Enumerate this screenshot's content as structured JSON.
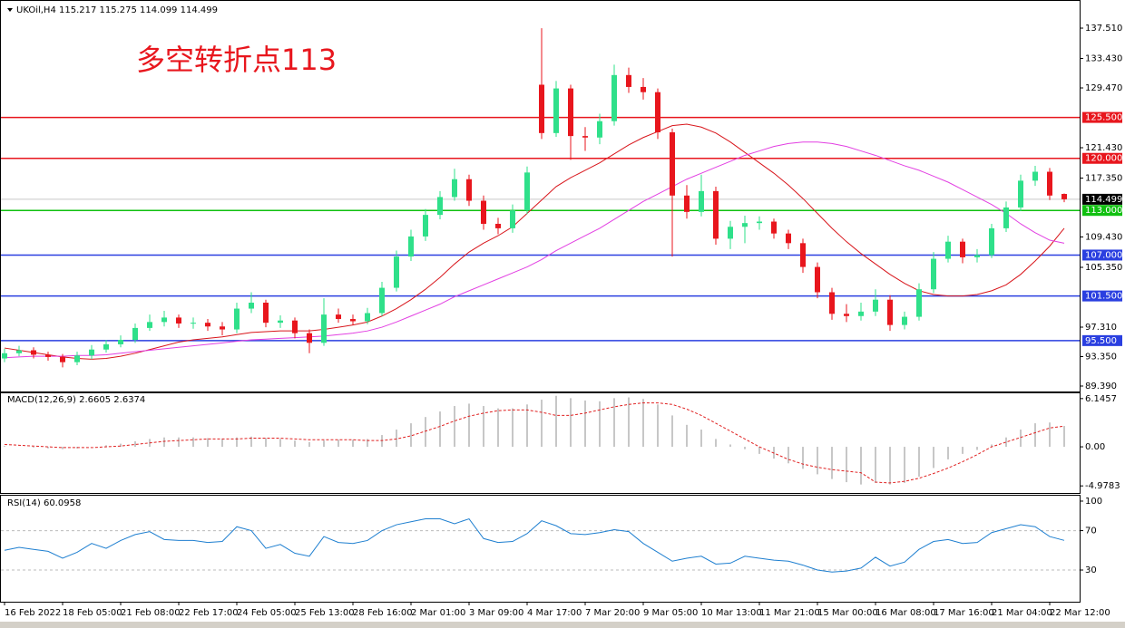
{
  "chart_data": [
    {
      "type": "candlestick",
      "title": "UKOil,H4  115.217 115.275 114.099 114.499",
      "annotation": "多空转折点113",
      "categories": [
        "16 Feb 2022",
        null,
        null,
        null,
        "18 Feb 05:00",
        null,
        null,
        null,
        "21 Feb 08:00",
        null,
        null,
        null,
        "22 Feb 17:00",
        null,
        null,
        null,
        "24 Feb 05:00",
        null,
        null,
        null,
        "25 Feb 13:00",
        null,
        null,
        null,
        "28 Feb 16:00",
        null,
        null,
        null,
        "2 Mar 01:00",
        null,
        null,
        null,
        "3 Mar 09:00",
        null,
        null,
        null,
        "4 Mar 17:00",
        null,
        null,
        null,
        "7 Mar 20:00",
        null,
        null,
        null,
        "9 Mar 05:00",
        null,
        null,
        null,
        "10 Mar 13:00",
        null,
        null,
        null,
        "11 Mar 21:00",
        null,
        null,
        null,
        "15 Mar 00:00",
        null,
        null,
        null,
        "16 Mar 08:00",
        null,
        null,
        null,
        "17 Mar 16:00",
        null,
        null,
        null,
        "21 Mar 04:00",
        null,
        null,
        null,
        "22 Mar 12:00",
        null
      ],
      "open": [
        93.1,
        93.8,
        94.2,
        93.6,
        93.3,
        92.6,
        93.5,
        94.3,
        95.0,
        95.6,
        97.2,
        98.0,
        98.6,
        97.8,
        97.9,
        97.4,
        97.0,
        99.8,
        100.6,
        97.9,
        98.2,
        96.5,
        95.2,
        99.0,
        98.4,
        98.1,
        99.2,
        102.6,
        106.8,
        109.5,
        112.4,
        114.8,
        117.2,
        114.3,
        111.2,
        110.6,
        113.0,
        129.9,
        123.4,
        129.4,
        123.0,
        122.8,
        125.0,
        131.2,
        129.6,
        128.9,
        123.5,
        115.0,
        112.8,
        115.6,
        109.2,
        110.8,
        111.3,
        111.5,
        109.9,
        108.6,
        105.4,
        102.0,
        99.1,
        98.8,
        99.4,
        101.0,
        97.6,
        98.7,
        102.4,
        106.5,
        108.8,
        106.7,
        107.0,
        110.6,
        113.4,
        117.0,
        118.2,
        115.217
      ],
      "high": [
        94.4,
        94.8,
        94.6,
        94.0,
        93.7,
        94.0,
        94.9,
        95.6,
        96.2,
        97.8,
        99.0,
        99.5,
        99.0,
        98.6,
        98.4,
        98.0,
        100.6,
        102.0,
        101.0,
        98.9,
        98.6,
        97.0,
        101.2,
        99.8,
        99.0,
        99.9,
        103.4,
        107.6,
        110.4,
        113.2,
        115.6,
        118.6,
        117.8,
        115.0,
        112.0,
        113.8,
        118.9,
        137.5,
        130.4,
        129.9,
        124.2,
        126.0,
        132.6,
        132.2,
        130.8,
        129.4,
        124.0,
        116.4,
        117.8,
        116.2,
        111.6,
        112.3,
        112.2,
        111.9,
        110.4,
        109.2,
        106.0,
        102.6,
        100.4,
        100.6,
        102.4,
        101.6,
        99.4,
        103.2,
        107.4,
        109.6,
        109.2,
        107.8,
        111.2,
        114.2,
        117.8,
        119.0,
        118.7,
        115.275
      ],
      "low": [
        92.6,
        93.4,
        93.1,
        92.8,
        91.9,
        92.2,
        93.0,
        93.9,
        94.6,
        95.2,
        96.8,
        97.4,
        97.2,
        97.1,
        96.8,
        96.2,
        96.5,
        99.2,
        97.3,
        97.2,
        95.8,
        93.8,
        94.8,
        97.9,
        97.6,
        97.7,
        98.8,
        102.1,
        106.2,
        108.9,
        111.8,
        114.3,
        113.6,
        110.4,
        109.8,
        110.0,
        112.5,
        122.6,
        122.9,
        119.8,
        121.0,
        121.9,
        124.4,
        128.8,
        127.9,
        122.6,
        106.8,
        111.9,
        112.2,
        108.4,
        107.8,
        108.6,
        110.4,
        109.2,
        107.8,
        104.6,
        101.2,
        98.3,
        98.0,
        98.2,
        98.8,
        96.8,
        97.0,
        98.2,
        101.9,
        106.0,
        105.9,
        106.0,
        106.6,
        110.1,
        112.9,
        116.3,
        114.4,
        114.099
      ],
      "close": [
        93.8,
        94.2,
        93.6,
        93.3,
        92.6,
        93.5,
        94.3,
        95.0,
        95.6,
        97.2,
        98.0,
        98.6,
        97.8,
        97.9,
        97.4,
        97.0,
        99.8,
        100.6,
        97.9,
        98.2,
        96.5,
        95.2,
        99.0,
        98.4,
        98.1,
        99.2,
        102.6,
        106.8,
        109.5,
        112.4,
        114.8,
        117.2,
        114.3,
        111.2,
        110.6,
        113.0,
        118.1,
        123.4,
        129.4,
        123.0,
        122.8,
        125.0,
        131.2,
        129.6,
        128.9,
        123.5,
        115.0,
        112.8,
        115.6,
        109.2,
        110.8,
        111.3,
        111.5,
        109.9,
        108.6,
        105.4,
        102.0,
        99.1,
        98.8,
        99.4,
        101.0,
        97.6,
        98.7,
        102.4,
        106.5,
        108.8,
        106.7,
        107.0,
        110.6,
        113.4,
        117.0,
        118.2,
        115.0,
        114.499
      ],
      "up_color": "#2fe08a",
      "down_color": "#e8161d",
      "lines": [
        {
          "color": "#d8151b",
          "values": [
            94.5,
            94.2,
            93.9,
            93.6,
            93.3,
            93.1,
            93.0,
            93.1,
            93.4,
            93.8,
            94.3,
            94.8,
            95.3,
            95.6,
            95.8,
            96.0,
            96.3,
            96.6,
            96.7,
            96.8,
            96.8,
            96.8,
            97.0,
            97.3,
            97.6,
            98.0,
            98.8,
            99.8,
            101.0,
            102.4,
            104.0,
            105.8,
            107.4,
            108.6,
            109.6,
            110.8,
            112.6,
            114.4,
            116.2,
            117.4,
            118.4,
            119.4,
            120.6,
            121.8,
            122.8,
            123.6,
            124.4,
            124.6,
            124.2,
            123.4,
            122.2,
            120.8,
            119.4,
            118.0,
            116.4,
            114.6,
            112.6,
            110.6,
            108.8,
            107.2,
            105.8,
            104.4,
            103.2,
            102.2,
            101.7,
            101.5,
            101.5,
            101.7,
            102.2,
            103.0,
            104.4,
            106.2,
            108.2,
            110.6
          ]
        },
        {
          "color": "#e23fe2",
          "values": [
            93.2,
            93.3,
            93.4,
            93.4,
            93.4,
            93.5,
            93.5,
            93.6,
            93.8,
            94.0,
            94.2,
            94.4,
            94.6,
            94.8,
            95.0,
            95.2,
            95.4,
            95.6,
            95.7,
            95.8,
            95.9,
            96.0,
            96.1,
            96.3,
            96.5,
            96.8,
            97.3,
            98.0,
            98.8,
            99.6,
            100.4,
            101.4,
            102.2,
            103.0,
            103.8,
            104.6,
            105.4,
            106.4,
            107.6,
            108.6,
            109.6,
            110.6,
            111.8,
            113.0,
            114.2,
            115.2,
            116.2,
            117.2,
            118.0,
            118.8,
            119.6,
            120.4,
            121.0,
            121.6,
            122.0,
            122.2,
            122.2,
            122.0,
            121.6,
            121.0,
            120.4,
            119.7,
            119.0,
            118.4,
            117.6,
            116.8,
            115.8,
            114.8,
            113.8,
            112.6,
            111.2,
            110.0,
            109.0,
            108.6
          ]
        }
      ],
      "levels": [
        {
          "value": 125.5,
          "label": "125.500",
          "color": "#e8161d"
        },
        {
          "value": 120,
          "label": "120.000",
          "color": "#e8161d"
        },
        {
          "value": 113,
          "label": "113.000",
          "color": "#10c010"
        },
        {
          "value": 107,
          "label": "107.000",
          "color": "#2a3fe0"
        },
        {
          "value": 101.5,
          "label": "101.500",
          "color": "#2a3fe0"
        },
        {
          "value": 95.5,
          "label": "95.500",
          "color": "#2a3fe0"
        }
      ],
      "last_price": 114.499,
      "ylim": [
        88.66,
        140.68
      ],
      "yticks": [
        {
          "value": 89.39,
          "label": "89.390"
        },
        {
          "value": 93.35,
          "label": "93.350"
        },
        {
          "value": 97.31,
          "label": "97.310"
        },
        {
          "value": 105.35,
          "label": "105.350"
        },
        {
          "value": 109.43,
          "label": "109.430"
        },
        {
          "value": 117.35,
          "label": "117.350"
        },
        {
          "value": 121.43,
          "label": "121.430"
        },
        {
          "value": 129.47,
          "label": "129.470"
        },
        {
          "value": 133.43,
          "label": "133.430"
        },
        {
          "value": 137.51,
          "label": "137.510"
        }
      ]
    },
    {
      "type": "macd",
      "title": "MACD(12,26,9) 2.6605 2.6374",
      "values": [
        0.1,
        0.0,
        -0.1,
        -0.2,
        -0.3,
        -0.2,
        0.0,
        0.2,
        0.4,
        0.7,
        1.0,
        1.2,
        1.2,
        1.2,
        1.1,
        1.0,
        1.2,
        1.3,
        1.1,
        1.0,
        0.8,
        0.6,
        0.8,
        0.9,
        0.9,
        1.0,
        1.5,
        2.2,
        3.0,
        3.8,
        4.5,
        5.2,
        5.5,
        5.2,
        4.9,
        4.9,
        5.4,
        6.0,
        6.5,
        6.2,
        5.9,
        5.8,
        6.2,
        6.3,
        6.1,
        5.4,
        4.0,
        2.8,
        2.2,
        1.0,
        0.3,
        -0.3,
        -0.9,
        -1.5,
        -2.1,
        -2.8,
        -3.5,
        -4.1,
        -4.5,
        -4.8,
        -4.6,
        -4.8,
        -4.6,
        -3.8,
        -2.7,
        -1.6,
        -0.9,
        -0.4,
        0.3,
        1.2,
        2.2,
        3.0,
        3.1,
        2.6605
      ],
      "signal": [
        0.3,
        0.2,
        0.1,
        0.0,
        -0.1,
        -0.1,
        -0.1,
        0.0,
        0.1,
        0.3,
        0.5,
        0.7,
        0.8,
        0.9,
        1.0,
        1.0,
        1.0,
        1.1,
        1.1,
        1.1,
        1.0,
        0.9,
        0.9,
        0.9,
        0.9,
        0.8,
        0.8,
        1.0,
        1.4,
        2.0,
        2.6,
        3.3,
        3.9,
        4.3,
        4.6,
        4.7,
        4.7,
        4.4,
        4.0,
        4.0,
        4.3,
        4.7,
        5.1,
        5.4,
        5.6,
        5.6,
        5.4,
        4.8,
        4.0,
        3.0,
        2.0,
        1.0,
        0.0,
        -0.8,
        -1.6,
        -2.2,
        -2.6,
        -2.9,
        -3.1,
        -3.3,
        -4.5,
        -4.6,
        -4.4,
        -4.0,
        -3.4,
        -2.7,
        -1.9,
        -1.0,
        0.0,
        0.6,
        1.2,
        1.8,
        2.4,
        2.6374
      ],
      "color": "#b4b4b4",
      "signal_color": "#e02020",
      "ylim": [
        -5.88,
        6.82
      ],
      "yticks": [
        -4.9783,
        {
          "value": 0,
          "label": "0.00"
        },
        6.1457
      ]
    },
    {
      "type": "line",
      "title": "RSI(14) 60.0958",
      "values": [
        50,
        53,
        51,
        49,
        42,
        48,
        57,
        52,
        60,
        66,
        69,
        61,
        60,
        60,
        58,
        59,
        74,
        70,
        52,
        56,
        47,
        44,
        64,
        58,
        57,
        60,
        70,
        76,
        79,
        82,
        82,
        77,
        82,
        62,
        58,
        59,
        67,
        80,
        75,
        67,
        66,
        68,
        71,
        69,
        57,
        48,
        39,
        42,
        44,
        36,
        37,
        44,
        42,
        40,
        39,
        35,
        30,
        28,
        29,
        32,
        43,
        34,
        38,
        51,
        59,
        61,
        57,
        58,
        68,
        72,
        76,
        74,
        64,
        60.0958
      ],
      "color": "#1e7fd0",
      "ylim": [
        -2.2,
        105.5
      ],
      "yticks": [
        30,
        70,
        100
      ],
      "grid_levels": [
        30,
        70
      ]
    }
  ]
}
